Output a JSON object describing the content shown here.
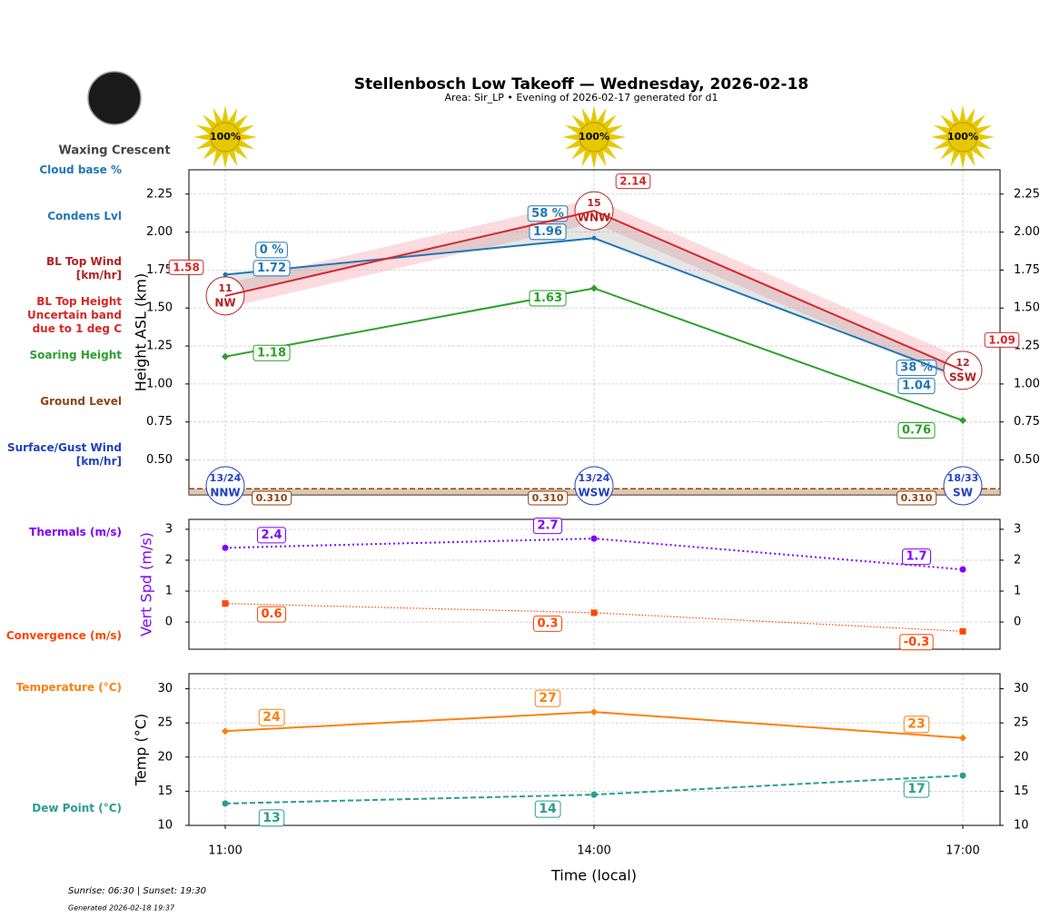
{
  "title": "Stellenbosch Low Takeoff — Wednesday, 2026-02-18",
  "subtitle": "Area: Sir_LP • Evening of 2026-02-17 generated for d1",
  "moon_phase": "Waxing Crescent",
  "sun": {
    "values": [
      100,
      100,
      100
    ],
    "value_labels": [
      "100%",
      "100%",
      "100%"
    ],
    "color": "#e6c800"
  },
  "x_label": "Time (local)",
  "footer": {
    "sun_times": "Sunrise: 06:30 | Sunset: 19:30",
    "generated": "Generated 2026-02-18 19:37"
  },
  "chart_data": [
    {
      "type": "line",
      "y_label": "Height ASL (km)",
      "ylim": [
        0.27,
        2.41
      ],
      "yticks": [
        {
          "value": 0.5,
          "label": "0.50"
        },
        0.75,
        {
          "value": 1,
          "label": "1.00"
        },
        1.25,
        {
          "value": 1.5,
          "label": "1.50"
        },
        1.75,
        {
          "value": 2,
          "label": "2.00"
        },
        2.25
      ],
      "grid": true,
      "series": [
        {
          "name": "Cloud base %",
          "kind": "cloud_base",
          "color": "#1f77b4",
          "values": [
            0,
            58,
            38
          ],
          "value_labels": [
            "0 %",
            "58 %",
            "38 %"
          ]
        },
        {
          "name": "Condens Lvl",
          "kind": "condens",
          "color": "#1f77b4",
          "marker": "circle",
          "values": [
            1.72,
            1.96,
            1.04
          ]
        },
        {
          "name": "BL Top Wind [km/hr]",
          "kind": "bl_wind",
          "color": "#b22222",
          "values": [
            11,
            15,
            12
          ],
          "directions": [
            "NW",
            "WNW",
            "SSW"
          ]
        },
        {
          "name": "BL Top Height",
          "kind": "bl_top",
          "color": "#d62728",
          "values": [
            1.58,
            2.14,
            1.09
          ],
          "band_name": "Uncertain band due to 1 deg C",
          "band_low": [
            1.5,
            2.06,
            1.01
          ],
          "band_high": [
            1.66,
            2.22,
            1.17
          ]
        },
        {
          "name": "Soaring Height",
          "kind": "line",
          "color": "#2ca02c",
          "marker": "diamond",
          "values": [
            1.18,
            1.63,
            0.76
          ]
        },
        {
          "name": "Ground Level",
          "kind": "ground",
          "color": "#8b4513",
          "values": [
            0.31,
            0.31,
            0.31
          ],
          "value_labels": [
            "0.310",
            "0.310",
            "0.310"
          ]
        },
        {
          "name": "Surface/Gust Wind [km/hr]",
          "kind": "surface_wind",
          "color": "#1f3fbf",
          "values": [
            13,
            13,
            18
          ],
          "gusts": [
            24,
            24,
            33
          ],
          "value_labels": [
            "13/24",
            "13/24",
            "18/33"
          ],
          "directions": [
            "NNW",
            "WSW",
            "SW"
          ]
        }
      ]
    },
    {
      "type": "line",
      "y_label": "Vert Spd (m/s)",
      "y_label_color": "#7f00ff",
      "ylim": [
        -0.88,
        3.32
      ],
      "yticks": [
        0,
        1,
        2,
        3
      ],
      "grid": true,
      "series": [
        {
          "name": "Thermals (m/s)",
          "kind": "line",
          "color": "#7f00ff",
          "marker": "circle",
          "dash": "dotted",
          "values": [
            2.4,
            2.7,
            1.7
          ]
        },
        {
          "name": "Convergence (m/s)",
          "kind": "line",
          "color": "#ff4500",
          "marker": "square",
          "dash": "fine",
          "values": [
            0.6,
            0.3,
            -0.3
          ]
        }
      ]
    },
    {
      "type": "line",
      "y_label": "Temp (°C)",
      "ylim": [
        10,
        32.2
      ],
      "yticks": [
        10,
        15,
        20,
        25,
        30
      ],
      "grid": true,
      "categories": [
        "11:00",
        "14:00",
        "17:00"
      ],
      "series": [
        {
          "name": "Temperature (°C)",
          "kind": "line",
          "color": "#ff7f0e",
          "marker": "diamond",
          "values": [
            23.8,
            26.6,
            22.8
          ],
          "value_labels": [
            "24",
            "27",
            "23"
          ]
        },
        {
          "name": "Dew Point (°C)",
          "kind": "line",
          "color": "#2a9d8f",
          "marker": "circle",
          "dash": "dashed",
          "values": [
            13.2,
            14.5,
            17.3
          ],
          "value_labels": [
            "13",
            "14",
            "17"
          ]
        }
      ]
    }
  ]
}
